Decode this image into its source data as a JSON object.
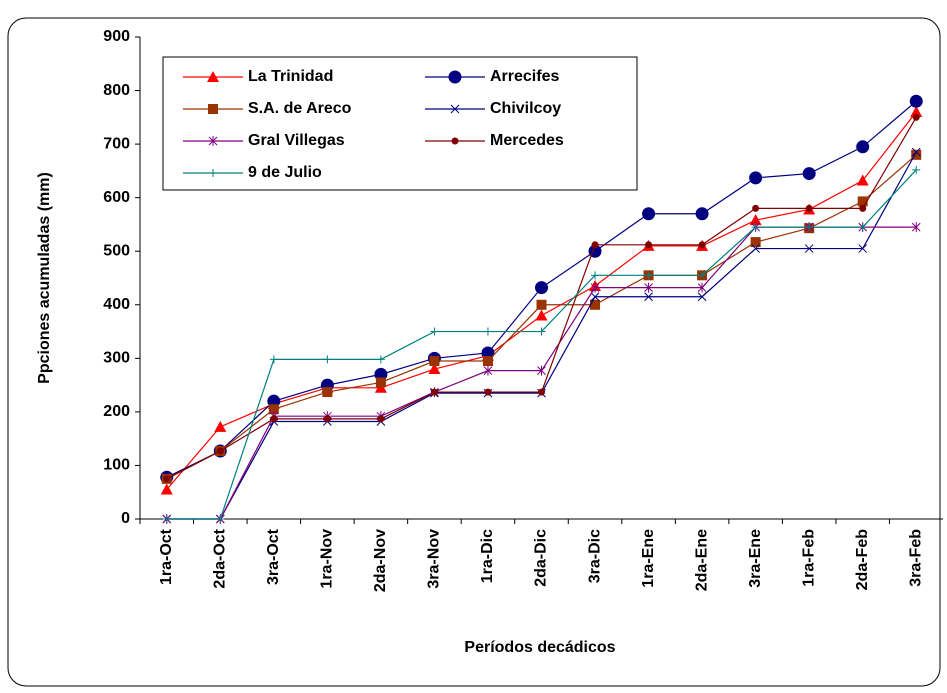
{
  "chart_data": {
    "type": "line",
    "x_label": "Períodos decádicos",
    "y_label": "Ppciones acumuladas (mm)",
    "categories": [
      "1ra-Oct",
      "2da-Oct",
      "3ra-Oct",
      "1ra-Nov",
      "2da-Nov",
      "3ra-Nov",
      "1ra-Dic",
      "2da-Dic",
      "3ra-Dic",
      "1ra-Ene",
      "2da-Ene",
      "3ra-Ene",
      "1ra-Feb",
      "2da-Feb",
      "3ra-Feb"
    ],
    "ylim": [
      0,
      900
    ],
    "yticks": [
      0,
      100,
      200,
      300,
      400,
      500,
      600,
      700,
      800,
      900
    ],
    "legend": "upper left",
    "series": [
      {
        "name": "La Trinidad",
        "color": "#ff0000",
        "marker": "triangle",
        "values": [
          55,
          172,
          215,
          245,
          245,
          280,
          305,
          380,
          435,
          510,
          510,
          558,
          578,
          632,
          760
        ]
      },
      {
        "name": "Arrecifes",
        "color": "#000080",
        "marker": "circle",
        "values": [
          78,
          127,
          220,
          250,
          270,
          300,
          310,
          432,
          500,
          570,
          570,
          637,
          645,
          695,
          780
        ]
      },
      {
        "name": "S.A. de Areco",
        "color": "#993300",
        "marker": "square",
        "values": [
          75,
          127,
          205,
          237,
          255,
          295,
          295,
          400,
          400,
          455,
          455,
          517,
          543,
          593,
          680
        ]
      },
      {
        "name": "Chivilcoy",
        "color": "#000080",
        "marker": "x",
        "values": [
          0,
          0,
          182,
          182,
          182,
          235,
          235,
          235,
          415,
          415,
          415,
          505,
          505,
          505,
          685
        ]
      },
      {
        "name": "Gral Villegas",
        "color": "#800080",
        "marker": "star",
        "values": [
          0,
          0,
          192,
          192,
          192,
          237,
          277,
          277,
          432,
          432,
          432,
          545,
          545,
          545,
          545
        ]
      },
      {
        "name": "Mercedes",
        "color": "#800000",
        "marker": "dot",
        "values": [
          75,
          127,
          187,
          187,
          187,
          237,
          237,
          237,
          512,
          512,
          512,
          580,
          580,
          580,
          750
        ]
      },
      {
        "name": "9 de Julio",
        "color": "#008080",
        "marker": "plus",
        "values": [
          0,
          0,
          298,
          298,
          298,
          350,
          350,
          350,
          455,
          455,
          455,
          545,
          545,
          545,
          652
        ]
      }
    ]
  }
}
